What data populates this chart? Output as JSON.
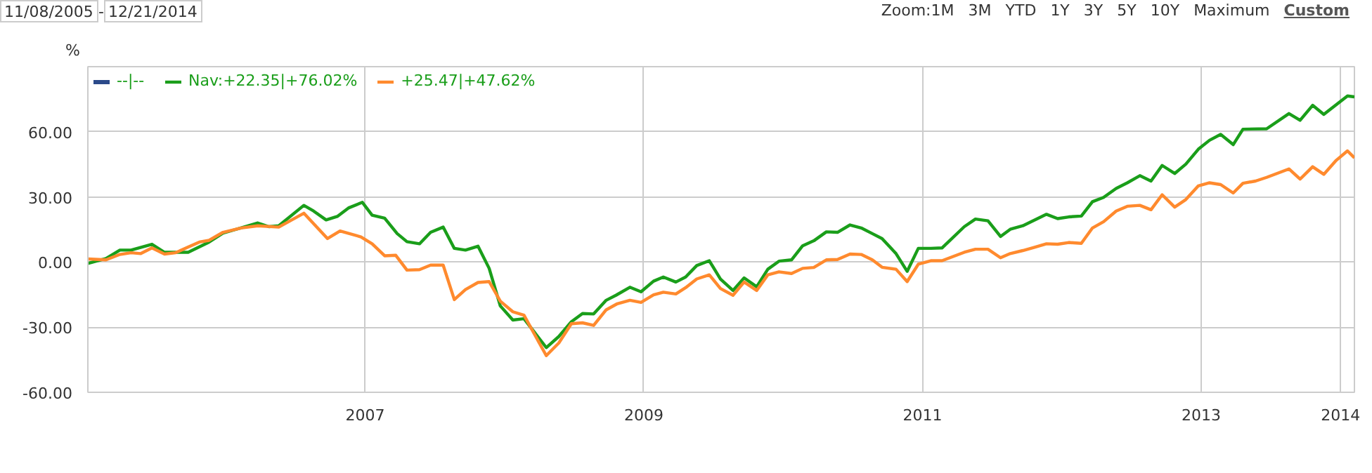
{
  "chart_data": {
    "type": "line",
    "ylabel": "%",
    "annotations": [
      "11/08/2005",
      "-",
      "12/21/2014",
      "Zoom:",
      "1M",
      "3M",
      "YTD",
      "1Y",
      "3Y",
      "5Y",
      "10Y",
      "Maximum",
      "Custom"
    ],
    "xlim": [
      2005.01,
      2014.1
    ],
    "xticks": [
      2007,
      2009,
      2011,
      2013,
      2014
    ],
    "ylim": [
      -60,
      90
    ],
    "yticks": [
      {
        "value": -60,
        "label": "-60.00"
      },
      {
        "value": -30,
        "label": "-30.00"
      },
      {
        "value": 0,
        "label": "0.00"
      },
      {
        "value": 30,
        "label": "30.00"
      },
      {
        "value": 60,
        "label": "60.00"
      }
    ],
    "grid": true,
    "legend": "top left",
    "line_style": "solid",
    "marker": "none",
    "series": [
      {
        "name": "--|--",
        "color": "#2b4a8a"
      },
      {
        "name": "Nav:+22.35|+76.02%",
        "color": "#1a9e1a",
        "x": [
          2005.01,
          2005.14,
          2005.24,
          2005.32,
          2005.47,
          2005.56,
          2005.73,
          2005.88,
          2005.98,
          2006.23,
          2006.31,
          2006.38,
          2006.56,
          2006.63,
          2006.72,
          2006.8,
          2006.88,
          2006.98,
          2007.05,
          2007.14,
          2007.23,
          2007.3,
          2007.39,
          2007.47,
          2007.56,
          2007.64,
          2007.72,
          2007.81,
          2007.89,
          2007.97,
          2008.06,
          2008.14,
          2008.3,
          2008.39,
          2008.48,
          2008.56,
          2008.64,
          2008.73,
          2008.8,
          2008.9,
          2008.98,
          2009.07,
          2009.14,
          2009.23,
          2009.3,
          2009.38,
          2009.47,
          2009.55,
          2009.64,
          2009.72,
          2009.81,
          2009.89,
          2009.97,
          2010.06,
          2010.14,
          2010.22,
          2010.31,
          2010.39,
          2010.48,
          2010.56,
          2010.64,
          2010.71,
          2010.81,
          2010.89,
          2010.97,
          2011.06,
          2011.14,
          2011.3,
          2011.38,
          2011.47,
          2011.56,
          2011.63,
          2011.72,
          2011.89,
          2011.97,
          2012.05,
          2012.14,
          2012.22,
          2012.3,
          2012.39,
          2012.47,
          2012.56,
          2012.64,
          2012.72,
          2012.81,
          2012.89,
          2012.98,
          2013.06,
          2013.14,
          2013.23,
          2013.3,
          2013.47,
          2013.63,
          2013.71,
          2013.8,
          2013.88,
          2014.05,
          2014.1
        ],
        "values": [
          -0.6,
          1.6,
          5.5,
          5.5,
          8.2,
          4.5,
          4.5,
          9.2,
          13.3,
          18.0,
          16.3,
          16.7,
          26.1,
          23.5,
          19.4,
          21.0,
          24.9,
          27.5,
          21.6,
          20.2,
          13.1,
          9.4,
          8.4,
          13.7,
          16.1,
          6.3,
          5.5,
          7.3,
          -2.9,
          -20.2,
          -26.7,
          -26.1,
          -39.4,
          -34.3,
          -27.5,
          -23.7,
          -23.9,
          -17.6,
          -15.3,
          -11.6,
          -13.7,
          -8.8,
          -6.9,
          -9.2,
          -6.9,
          -1.6,
          0.6,
          -7.8,
          -13.1,
          -7.3,
          -11.4,
          -3.3,
          0.4,
          1.0,
          7.5,
          9.8,
          13.9,
          13.7,
          17.1,
          15.7,
          13.1,
          10.8,
          3.9,
          -4.3,
          6.3,
          6.3,
          6.5,
          16.3,
          19.8,
          19.0,
          11.8,
          15.1,
          16.7,
          22.0,
          20.0,
          20.8,
          21.2,
          27.8,
          29.8,
          33.9,
          36.5,
          39.8,
          37.3,
          44.5,
          40.8,
          45.1,
          52.0,
          56.1,
          58.8,
          54.1,
          61.2,
          61.4,
          68.4,
          65.3,
          72.2,
          68.0,
          76.5,
          76.1
        ]
      },
      {
        "name": "+25.47|+47.62%",
        "color": "#ff8a2e",
        "x": [
          2005.01,
          2005.14,
          2005.24,
          2005.32,
          2005.39,
          2005.47,
          2005.56,
          2005.64,
          2005.73,
          2005.81,
          2005.88,
          2005.98,
          2006.11,
          2006.23,
          2006.38,
          2006.56,
          2006.73,
          2006.82,
          2006.97,
          2007.05,
          2007.14,
          2007.22,
          2007.3,
          2007.39,
          2007.47,
          2007.56,
          2007.64,
          2007.72,
          2007.81,
          2007.89,
          2007.97,
          2008.06,
          2008.14,
          2008.3,
          2008.39,
          2008.48,
          2008.56,
          2008.64,
          2008.73,
          2008.81,
          2008.9,
          2008.98,
          2009.07,
          2009.14,
          2009.23,
          2009.3,
          2009.38,
          2009.47,
          2009.55,
          2009.64,
          2009.72,
          2009.81,
          2009.89,
          2009.97,
          2010.06,
          2010.14,
          2010.22,
          2010.31,
          2010.39,
          2010.48,
          2010.56,
          2010.64,
          2010.71,
          2010.81,
          2010.89,
          2010.97,
          2011.06,
          2011.14,
          2011.3,
          2011.38,
          2011.47,
          2011.56,
          2011.63,
          2011.72,
          2011.8,
          2011.89,
          2011.97,
          2012.05,
          2012.14,
          2012.22,
          2012.3,
          2012.39,
          2012.47,
          2012.56,
          2012.64,
          2012.72,
          2012.81,
          2012.89,
          2012.98,
          2013.06,
          2013.14,
          2013.23,
          2013.3,
          2013.39,
          2013.47,
          2013.63,
          2013.71,
          2013.8,
          2013.88,
          2013.97,
          2014.05,
          2014.1
        ],
        "values": [
          1.4,
          1.0,
          3.5,
          4.3,
          3.9,
          6.5,
          3.7,
          4.3,
          6.9,
          9.2,
          10.0,
          13.7,
          15.7,
          16.7,
          16.1,
          22.5,
          10.8,
          14.3,
          11.6,
          8.4,
          2.9,
          3.1,
          -3.7,
          -3.5,
          -1.4,
          -1.4,
          -17.3,
          -12.7,
          -9.4,
          -9.0,
          -18.0,
          -22.9,
          -24.5,
          -43.1,
          -37.3,
          -28.4,
          -28.0,
          -29.2,
          -22.0,
          -19.2,
          -17.6,
          -18.6,
          -15.1,
          -13.9,
          -14.7,
          -11.8,
          -7.8,
          -5.9,
          -12.2,
          -15.3,
          -9.2,
          -13.1,
          -5.9,
          -4.5,
          -5.3,
          -2.9,
          -2.5,
          1.0,
          1.2,
          3.7,
          3.5,
          1.0,
          -2.4,
          -3.3,
          -9.0,
          -1.0,
          0.6,
          0.6,
          4.5,
          5.9,
          5.9,
          2.0,
          3.9,
          5.3,
          6.7,
          8.4,
          8.2,
          9.0,
          8.6,
          15.7,
          18.6,
          23.5,
          25.7,
          26.1,
          24.1,
          31.0,
          25.3,
          28.8,
          35.1,
          36.5,
          35.7,
          31.8,
          36.3,
          37.3,
          39.0,
          42.9,
          38.2,
          43.9,
          40.4,
          46.9,
          51.2,
          48.0
        ]
      }
    ]
  }
}
